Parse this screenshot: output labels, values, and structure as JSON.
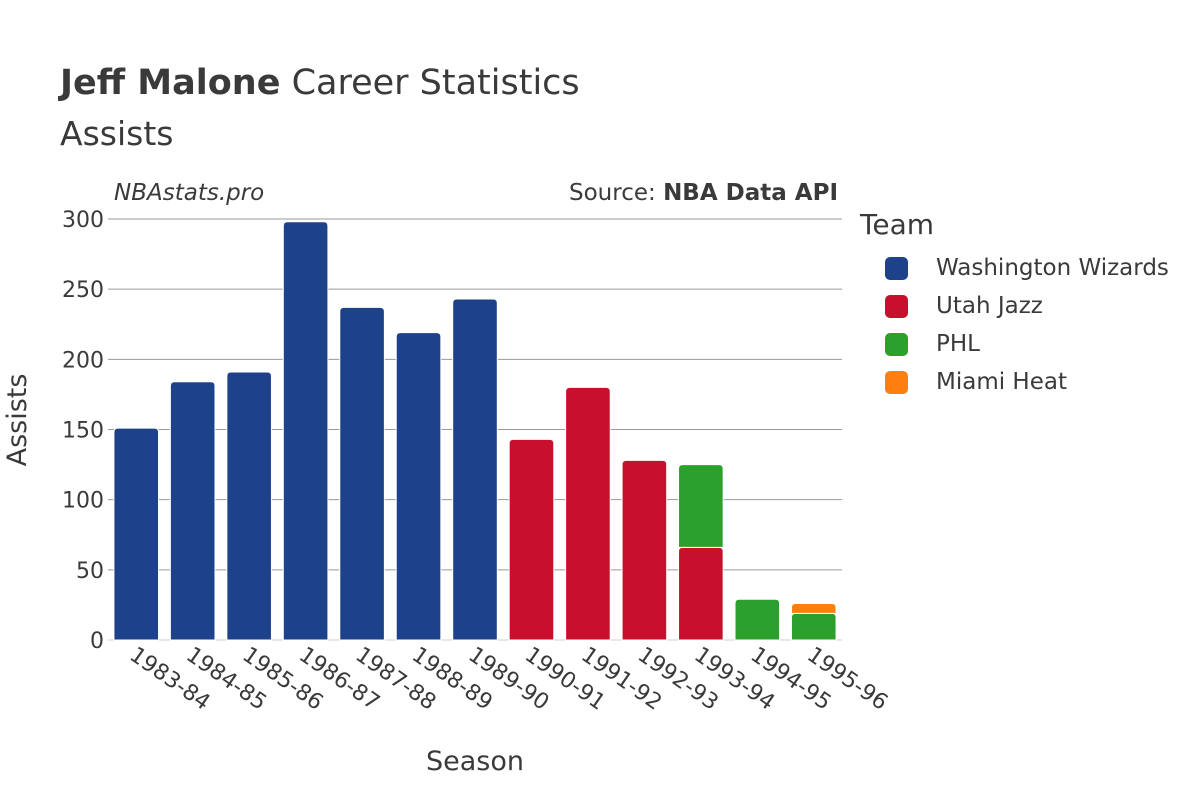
{
  "header": {
    "player": "Jeff Malone",
    "title_rest": " Career Statistics",
    "subtitle": "Assists"
  },
  "watermark": "NBAstats.pro",
  "source": {
    "prefix": "Source: ",
    "name": "NBA Data API"
  },
  "legend": {
    "title": "Team"
  },
  "colors": {
    "Washington Wizards": "#1d428a",
    "Utah Jazz": "#c8102e",
    "PHL": "#2ca02c",
    "Miami Heat": "#ff7f0e",
    "grid": "#9a9a9a",
    "text": "#3a3a3a"
  },
  "chart_data": {
    "type": "bar",
    "stacked": true,
    "title": "Jeff Malone Career Statistics",
    "subtitle": "Assists",
    "xlabel": "Season",
    "ylabel": "Assists",
    "ylim": [
      0,
      300
    ],
    "yticks": [
      0,
      50,
      100,
      150,
      200,
      250,
      300
    ],
    "grid": true,
    "legend_position": "right",
    "categories": [
      "1983-84",
      "1984-85",
      "1985-86",
      "1986-87",
      "1987-88",
      "1988-89",
      "1989-90",
      "1990-91",
      "1991-92",
      "1992-93",
      "1993-94",
      "1994-95",
      "1995-96"
    ],
    "series": [
      {
        "name": "Washington Wizards",
        "values": [
          151,
          184,
          191,
          298,
          237,
          219,
          243,
          0,
          0,
          0,
          0,
          0,
          0
        ]
      },
      {
        "name": "Utah Jazz",
        "values": [
          0,
          0,
          0,
          0,
          0,
          0,
          0,
          143,
          180,
          128,
          66,
          0,
          0
        ]
      },
      {
        "name": "PHL",
        "values": [
          0,
          0,
          0,
          0,
          0,
          0,
          0,
          0,
          0,
          0,
          59,
          29,
          19
        ]
      },
      {
        "name": "Miami Heat",
        "values": [
          0,
          0,
          0,
          0,
          0,
          0,
          0,
          0,
          0,
          0,
          0,
          0,
          7
        ]
      }
    ]
  }
}
